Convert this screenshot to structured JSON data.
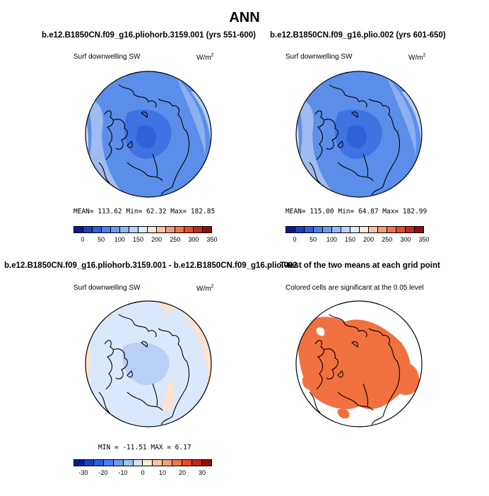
{
  "figure": {
    "title": "ANN"
  },
  "panels": {
    "top_left": {
      "title": "b.e12.B1850CN.f09_g16.pliohorb.3159.001 (yrs 551-600)",
      "variable": "Surf downwelling SW",
      "units_base": "W/m",
      "units_exp": "2",
      "stats": "MEAN= 113.62   Min=  62.32   Max= 182.85",
      "colorbar_labels": [
        "0",
        "50",
        "100",
        "150",
        "200",
        "250",
        "300",
        "350"
      ]
    },
    "top_right": {
      "title": "b.e12.B1850CN.f09_g16.plio.002 (yrs 601-650)",
      "variable": "Surf downwelling SW",
      "units_base": "W/m",
      "units_exp": "2",
      "stats": "MEAN= 115.00   Min=  64.87   Max= 182.99",
      "colorbar_labels": [
        "0",
        "50",
        "100",
        "150",
        "200",
        "250",
        "300",
        "350"
      ]
    },
    "bottom_left": {
      "title": "b.e12.B1850CN.f09_g16.pliohorb.3159.001 - b.e12.B1850CN.f09_g16.plio.002",
      "variable": "Surf downwelling SW",
      "units_base": "W/m",
      "units_exp": "2",
      "stats": "MIN = -11.51  MAX =   6.17",
      "colorbar_labels": [
        "-30",
        "-20",
        "-10",
        "0",
        "10",
        "20",
        "30"
      ]
    },
    "bottom_right": {
      "title": "T-test of the two means at each grid point",
      "subtitle": "Colored cells are significant at the 0.05 level"
    }
  },
  "colors": {
    "abs_scale": [
      "#0a1c8c",
      "#1b3ec2",
      "#2d5ee0",
      "#4b7ff0",
      "#6e99f2",
      "#95b6f5",
      "#bcd2f8",
      "#e1ecfb",
      "#fde6d4",
      "#f9c3a3",
      "#f49c78",
      "#ee744f",
      "#e24c2d",
      "#c7271a",
      "#8e0e0c"
    ],
    "diff_scale": [
      "#0a1c8c",
      "#1b3ec2",
      "#2d5ee0",
      "#4b7ff0",
      "#6e99f2",
      "#a3bff6",
      "#d3e2fa",
      "#fde6d4",
      "#f9c3a3",
      "#f49c78",
      "#ee744f",
      "#e24c2d",
      "#c7271a",
      "#8e0e0c"
    ],
    "significant": "#f07040"
  }
}
